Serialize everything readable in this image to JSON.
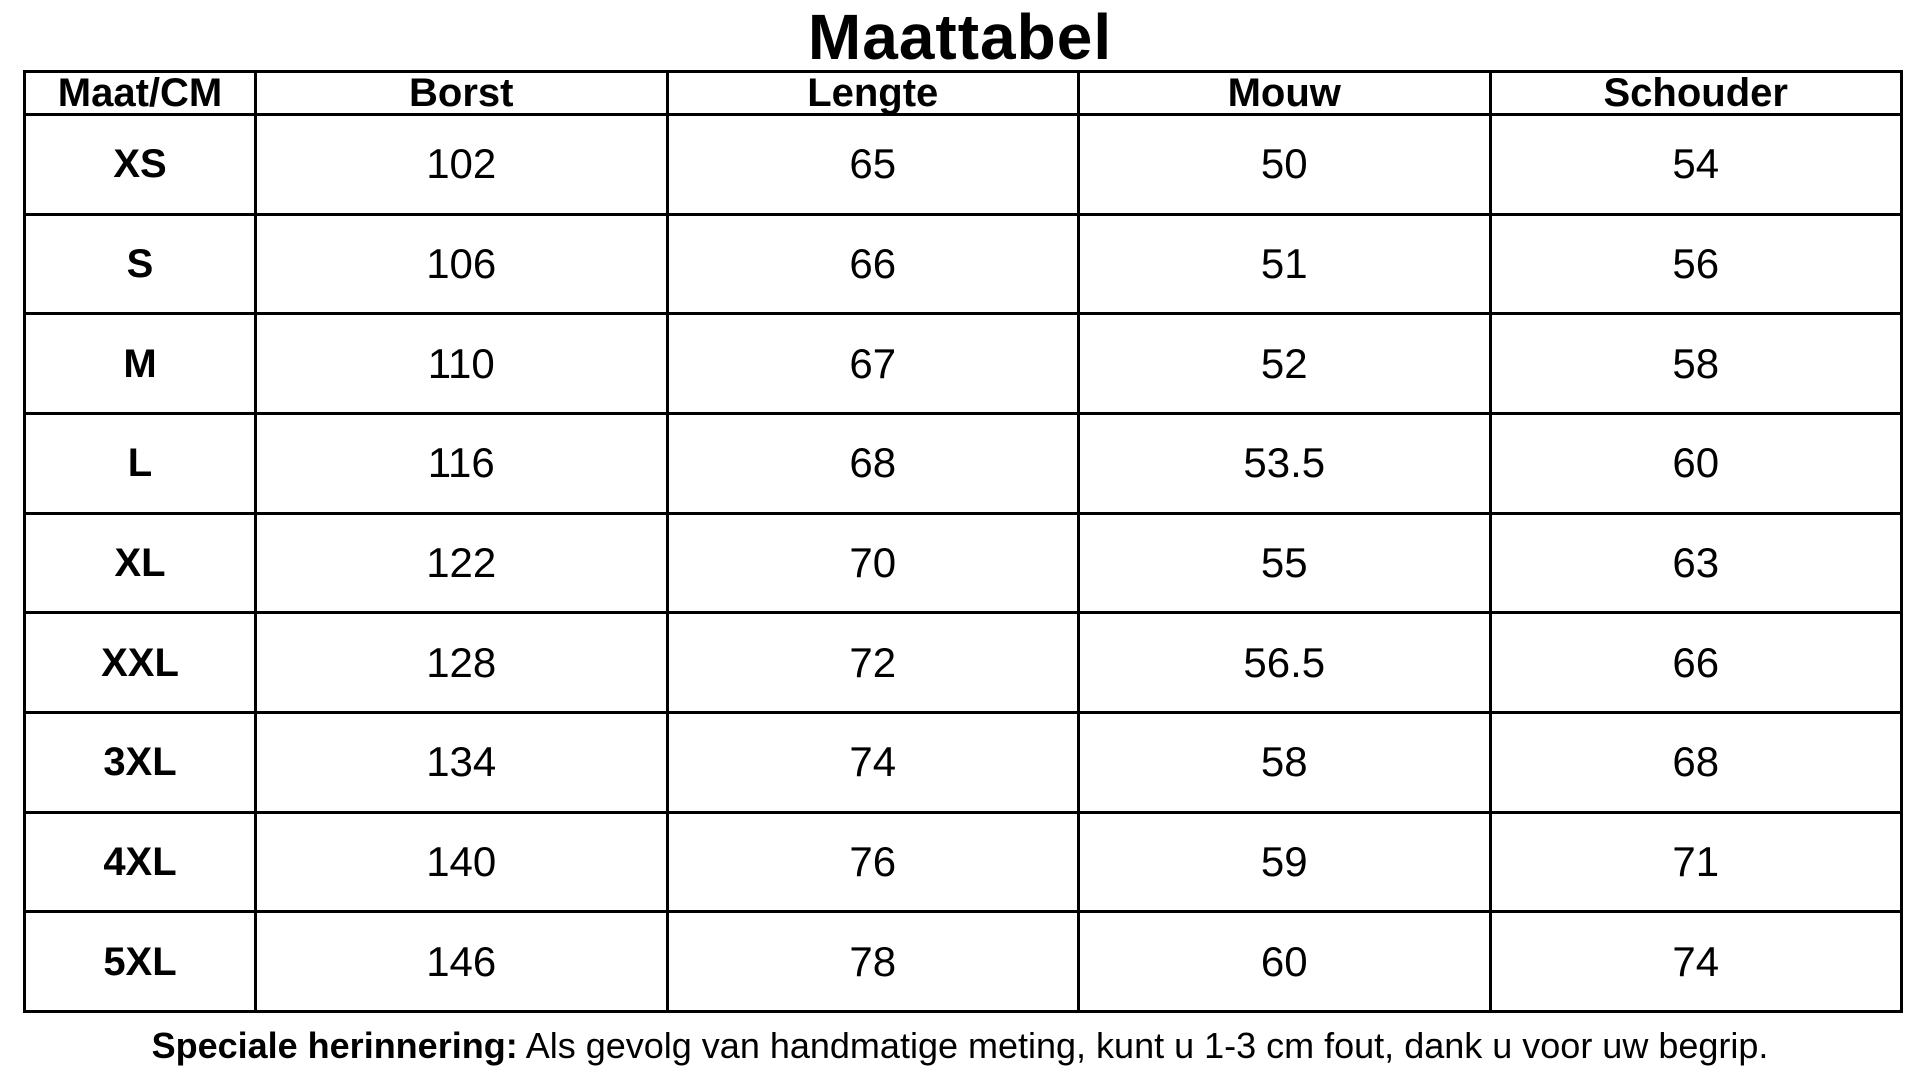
{
  "title": "Maattabel",
  "table": {
    "headers": [
      "Maat/CM",
      "Borst",
      "Lengte",
      "Mouw",
      "Schouder"
    ],
    "rows": [
      [
        "XS",
        "102",
        "65",
        "50",
        "54"
      ],
      [
        "S",
        "106",
        "66",
        "51",
        "56"
      ],
      [
        "M",
        "110",
        "67",
        "52",
        "58"
      ],
      [
        "L",
        "116",
        "68",
        "53.5",
        "60"
      ],
      [
        "XL",
        "122",
        "70",
        "55",
        "63"
      ],
      [
        "XXL",
        "128",
        "72",
        "56.5",
        "66"
      ],
      [
        "3XL",
        "134",
        "74",
        "58",
        "68"
      ],
      [
        "4XL",
        "140",
        "76",
        "59",
        "71"
      ],
      [
        "5XL",
        "146",
        "78",
        "60",
        "74"
      ]
    ]
  },
  "note": {
    "label": "Speciale herinnering:",
    "text": " Als gevolg van handmatige meting, kunt u 1-3 cm fout, dank u voor uw begrip."
  }
}
